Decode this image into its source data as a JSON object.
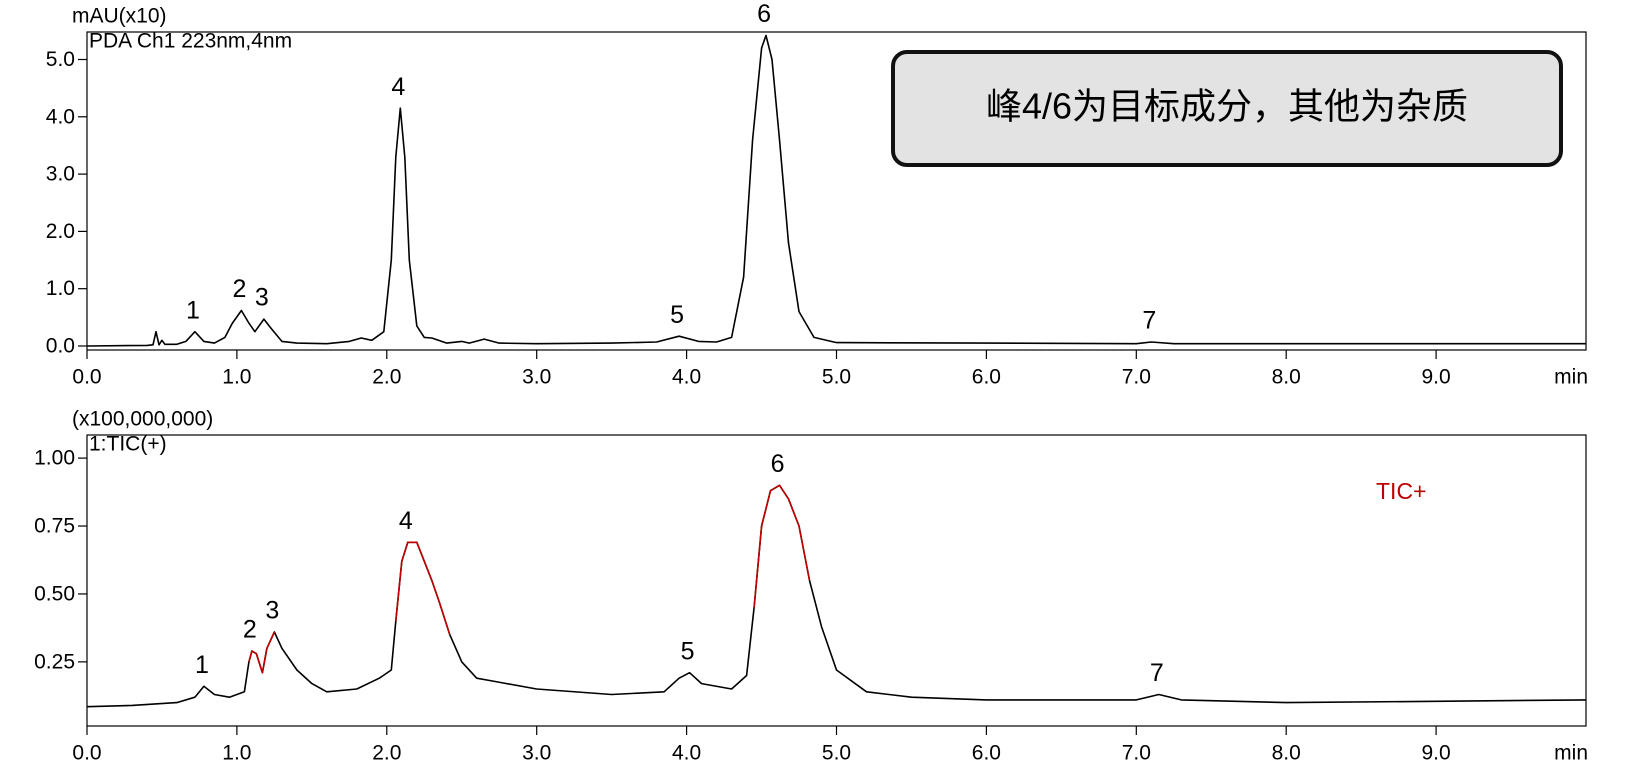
{
  "chart_data": [
    {
      "type": "line",
      "y_unit": "mAU(x10)",
      "channel": "PDA Ch1 223nm,4nm",
      "xlabel": "min",
      "annotation": "峰4/6为目标成分，其他为杂质",
      "xlim": [
        0,
        10
      ],
      "ylim": [
        -0.07,
        5.48
      ],
      "xticks": [
        {
          "value": 0,
          "label": "0.0"
        },
        {
          "value": 1,
          "label": "1.0"
        },
        {
          "value": 2,
          "label": "2.0"
        },
        {
          "value": 3,
          "label": "3.0"
        },
        {
          "value": 4,
          "label": "4.0"
        },
        {
          "value": 5,
          "label": "5.0"
        },
        {
          "value": 6,
          "label": "6.0"
        },
        {
          "value": 7,
          "label": "7.0"
        },
        {
          "value": 8,
          "label": "8.0"
        },
        {
          "value": 9,
          "label": "9.0"
        }
      ],
      "yticks": [
        {
          "value": 0,
          "label": "0.0"
        },
        {
          "value": 1,
          "label": "1.0"
        },
        {
          "value": 2,
          "label": "2.0"
        },
        {
          "value": 3,
          "label": "3.0"
        },
        {
          "value": 4,
          "label": "4.0"
        },
        {
          "value": 5,
          "label": "5.0"
        }
      ],
      "x": [
        0.0,
        0.4,
        0.44,
        0.46,
        0.48,
        0.5,
        0.52,
        0.6,
        0.66,
        0.72,
        0.78,
        0.85,
        0.92,
        0.97,
        1.03,
        1.08,
        1.12,
        1.18,
        1.23,
        1.3,
        1.4,
        1.6,
        1.75,
        1.83,
        1.9,
        1.98,
        2.03,
        2.06,
        2.09,
        2.12,
        2.15,
        2.2,
        2.25,
        2.3,
        2.4,
        2.5,
        2.55,
        2.65,
        2.75,
        3.0,
        3.5,
        3.8,
        3.95,
        4.08,
        4.2,
        4.3,
        4.38,
        4.44,
        4.5,
        4.53,
        4.57,
        4.62,
        4.68,
        4.75,
        4.85,
        5.0,
        6.0,
        7.0,
        7.1,
        7.25,
        8.0,
        9.0,
        10.0
      ],
      "series": [
        {
          "color": "#000000",
          "values": [
            0.0,
            0.01,
            0.02,
            0.25,
            0.02,
            0.1,
            0.03,
            0.03,
            0.08,
            0.25,
            0.08,
            0.05,
            0.15,
            0.4,
            0.62,
            0.4,
            0.25,
            0.47,
            0.3,
            0.08,
            0.05,
            0.04,
            0.08,
            0.14,
            0.1,
            0.25,
            1.5,
            3.3,
            4.15,
            3.3,
            1.5,
            0.35,
            0.15,
            0.14,
            0.05,
            0.08,
            0.05,
            0.12,
            0.05,
            0.04,
            0.05,
            0.07,
            0.17,
            0.08,
            0.07,
            0.15,
            1.2,
            3.6,
            5.2,
            5.42,
            5.0,
            3.6,
            1.8,
            0.6,
            0.15,
            0.06,
            0.05,
            0.04,
            0.07,
            0.04,
            0.04,
            0.04,
            0.04
          ]
        }
      ],
      "peaks": [
        {
          "label": "1",
          "x": 0.72
        },
        {
          "label": "2",
          "x": 1.03
        },
        {
          "label": "3",
          "x": 1.18
        },
        {
          "label": "4",
          "x": 2.09
        },
        {
          "label": "5",
          "x": 3.95
        },
        {
          "label": "6",
          "x": 4.53
        },
        {
          "label": "7",
          "x": 7.1
        }
      ]
    },
    {
      "type": "line",
      "y_unit": "(x100,000,000)",
      "channel": "1:TIC(+)",
      "xlabel": "min",
      "xlim": [
        0,
        10
      ],
      "ylim": [
        0.014,
        1.085
      ],
      "xticks": [
        {
          "value": 0,
          "label": "0.0"
        },
        {
          "value": 1,
          "label": "1.0"
        },
        {
          "value": 2,
          "label": "2.0"
        },
        {
          "value": 3,
          "label": "3.0"
        },
        {
          "value": 4,
          "label": "4.0"
        },
        {
          "value": 5,
          "label": "5.0"
        },
        {
          "value": 6,
          "label": "6.0"
        },
        {
          "value": 7,
          "label": "7.0"
        },
        {
          "value": 8,
          "label": "8.0"
        },
        {
          "value": 9,
          "label": "9.0"
        }
      ],
      "yticks": [
        0.25,
        {
          "value": 0.5,
          "label": "0.50"
        },
        0.75,
        {
          "value": 1,
          "label": "1.00"
        }
      ],
      "x": [
        0.0,
        0.3,
        0.6,
        0.72,
        0.78,
        0.85,
        0.95,
        1.05,
        1.08,
        1.1,
        1.13,
        1.17,
        1.2,
        1.25,
        1.3,
        1.4,
        1.5,
        1.6,
        1.8,
        1.95,
        2.03,
        2.06,
        2.1,
        2.14,
        2.2,
        2.25,
        2.3,
        2.35,
        2.42,
        2.5,
        2.6,
        2.7,
        2.8,
        3.0,
        3.5,
        3.85,
        3.95,
        4.02,
        4.1,
        4.3,
        4.4,
        4.45,
        4.5,
        4.56,
        4.62,
        4.68,
        4.75,
        4.82,
        4.9,
        5.0,
        5.2,
        5.5,
        6.0,
        7.0,
        7.15,
        7.3,
        8.0,
        9.0,
        10.0
      ],
      "series": [
        {
          "color": "#000000",
          "values": [
            0.085,
            0.09,
            0.1,
            0.12,
            0.16,
            0.13,
            0.12,
            0.14,
            0.25,
            0.29,
            0.28,
            0.21,
            0.3,
            0.36,
            0.3,
            0.22,
            0.17,
            0.14,
            0.15,
            0.19,
            0.22,
            0.4,
            0.62,
            0.69,
            0.69,
            0.62,
            0.55,
            0.47,
            0.35,
            0.25,
            0.19,
            0.18,
            0.17,
            0.15,
            0.13,
            0.14,
            0.19,
            0.21,
            0.17,
            0.15,
            0.2,
            0.45,
            0.75,
            0.88,
            0.9,
            0.85,
            0.75,
            0.55,
            0.38,
            0.22,
            0.14,
            0.12,
            0.11,
            0.11,
            0.13,
            0.11,
            0.1,
            0.105,
            0.11
          ]
        },
        {
          "name": "TIC+",
          "color": "#c00000",
          "values": [
            null,
            null,
            null,
            null,
            null,
            null,
            null,
            null,
            0.25,
            0.29,
            0.28,
            0.21,
            0.3,
            0.36,
            null,
            null,
            null,
            null,
            null,
            null,
            null,
            0.4,
            0.62,
            0.69,
            0.69,
            0.62,
            0.55,
            0.47,
            0.35,
            null,
            null,
            null,
            null,
            null,
            null,
            null,
            null,
            null,
            null,
            null,
            null,
            0.45,
            0.75,
            0.88,
            0.9,
            0.85,
            0.75,
            0.55,
            null,
            null,
            null,
            null,
            null,
            null,
            null,
            null,
            null,
            null,
            null
          ]
        }
      ],
      "peaks": [
        {
          "label": "1",
          "x": 0.78
        },
        {
          "label": "2",
          "x": 1.1
        },
        {
          "label": "3",
          "x": 1.25
        },
        {
          "label": "4",
          "x": 2.14
        },
        {
          "label": "5",
          "x": 4.02
        },
        {
          "label": "6",
          "x": 4.62
        },
        {
          "label": "7",
          "x": 7.15
        }
      ]
    }
  ]
}
